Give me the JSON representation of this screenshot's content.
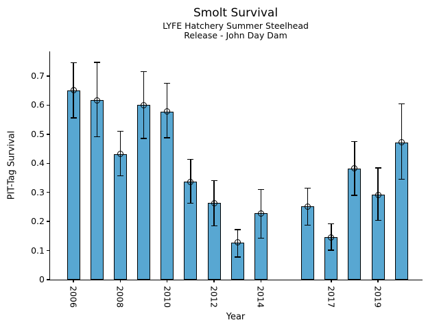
{
  "title": "Smolt Survival",
  "subtitle_line1": "LYFE Hatchery Summer Steelhead",
  "subtitle_line2": "Release - John Day Dam",
  "chart_data": {
    "type": "bar",
    "title": "Smolt Survival",
    "subtitle": [
      "LYFE Hatchery Summer Steelhead",
      "Release - John Day Dam"
    ],
    "xlabel": "Year",
    "ylabel": "PIT-Tag Survival",
    "grid": false,
    "legend_position": "none",
    "bar_color": "#58A7D2",
    "bar_edge_color": "#000000",
    "error_bar_color": "#000000",
    "marker_style": "open-circle",
    "xlim": [
      2005.0,
      2020.9
    ],
    "ylim": [
      0,
      0.785
    ],
    "yticks": [
      0,
      0.1,
      0.2,
      0.3,
      0.4,
      0.5,
      0.6,
      0.7
    ],
    "ytick_labels": [
      "0",
      "0.1",
      "0.2",
      "0.3",
      "0.4",
      "0.5",
      "0.6",
      "0.7"
    ],
    "xtick_years": [
      2006,
      2008,
      2010,
      2012,
      2014,
      2017,
      2019
    ],
    "xtick_labels": [
      "2006",
      "2008",
      "2010",
      "2012",
      "2014",
      "2017",
      "2019"
    ],
    "missing_years": [
      2015
    ],
    "series": [
      {
        "name": "PIT-Tag Survival",
        "points": [
          {
            "year": 2006,
            "value": 0.651,
            "ci_low": 0.556,
            "ci_high": 0.746
          },
          {
            "year": 2007,
            "value": 0.617,
            "ci_low": 0.491,
            "ci_high": 0.747
          },
          {
            "year": 2008,
            "value": 0.432,
            "ci_low": 0.357,
            "ci_high": 0.51
          },
          {
            "year": 2009,
            "value": 0.601,
            "ci_low": 0.486,
            "ci_high": 0.715
          },
          {
            "year": 2010,
            "value": 0.578,
            "ci_low": 0.488,
            "ci_high": 0.676
          },
          {
            "year": 2011,
            "value": 0.337,
            "ci_low": 0.263,
            "ci_high": 0.413
          },
          {
            "year": 2012,
            "value": 0.263,
            "ci_low": 0.185,
            "ci_high": 0.34
          },
          {
            "year": 2013,
            "value": 0.128,
            "ci_low": 0.078,
            "ci_high": 0.172
          },
          {
            "year": 2014,
            "value": 0.228,
            "ci_low": 0.142,
            "ci_high": 0.31
          },
          {
            "year": 2016,
            "value": 0.252,
            "ci_low": 0.188,
            "ci_high": 0.315
          },
          {
            "year": 2017,
            "value": 0.146,
            "ci_low": 0.101,
            "ci_high": 0.192
          },
          {
            "year": 2018,
            "value": 0.382,
            "ci_low": 0.29,
            "ci_high": 0.475
          },
          {
            "year": 2019,
            "value": 0.292,
            "ci_low": 0.204,
            "ci_high": 0.384
          },
          {
            "year": 2020,
            "value": 0.472,
            "ci_low": 0.345,
            "ci_high": 0.605
          }
        ]
      }
    ]
  }
}
